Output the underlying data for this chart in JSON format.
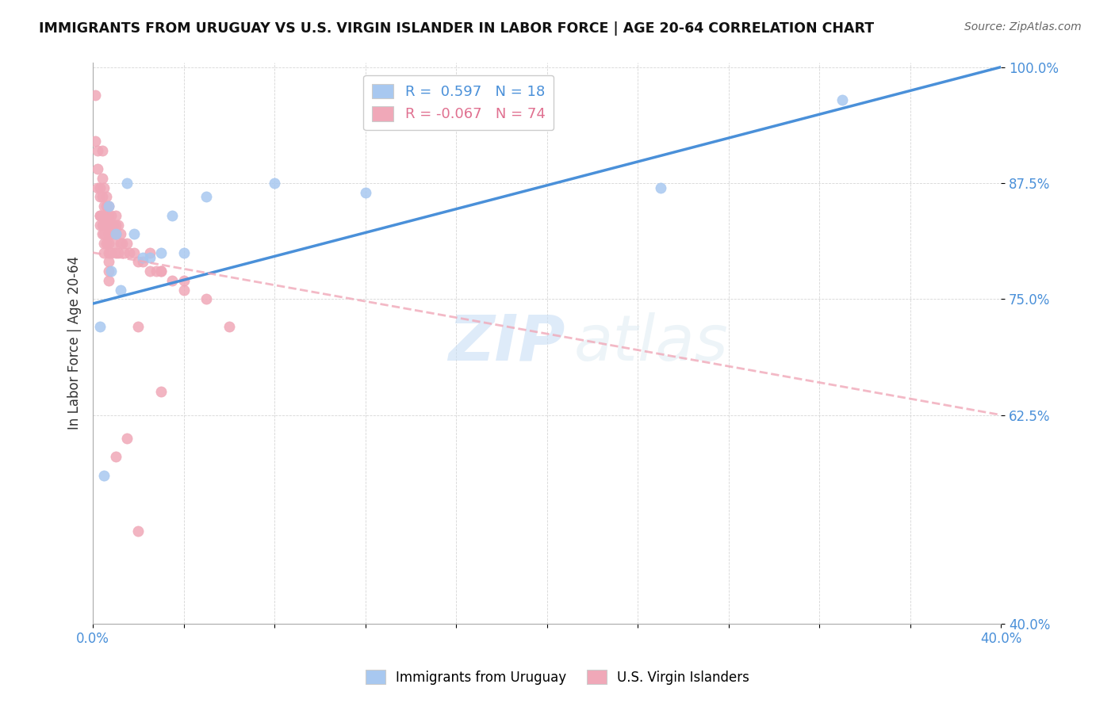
{
  "title": "IMMIGRANTS FROM URUGUAY VS U.S. VIRGIN ISLANDER IN LABOR FORCE | AGE 20-64 CORRELATION CHART",
  "source": "Source: ZipAtlas.com",
  "ylabel": "In Labor Force | Age 20-64",
  "xlim": [
    0.0,
    0.4
  ],
  "ylim": [
    0.4,
    1.005
  ],
  "xticks": [
    0.0,
    0.04,
    0.08,
    0.12,
    0.16,
    0.2,
    0.24,
    0.28,
    0.32,
    0.36,
    0.4
  ],
  "ytick_positions": [
    0.4,
    0.625,
    0.75,
    0.875,
    1.0
  ],
  "ytick_labels": [
    "40.0%",
    "62.5%",
    "75.0%",
    "87.5%",
    "100.0%"
  ],
  "blue_R": 0.597,
  "blue_N": 18,
  "pink_R": -0.067,
  "pink_N": 74,
  "blue_color": "#a8c8f0",
  "pink_color": "#f0a8b8",
  "blue_line_color": "#4a90d9",
  "pink_line_color": "#f0a8b8",
  "watermark_zip": "ZIP",
  "watermark_atlas": "atlas",
  "blue_trend_x0": 0.0,
  "blue_trend_y0": 0.745,
  "blue_trend_x1": 0.4,
  "blue_trend_y1": 1.0,
  "pink_trend_x0": 0.0,
  "pink_trend_y0": 0.8,
  "pink_trend_x1": 0.4,
  "pink_trend_y1": 0.625,
  "blue_scatter_x": [
    0.003,
    0.005,
    0.007,
    0.008,
    0.01,
    0.012,
    0.015,
    0.018,
    0.022,
    0.025,
    0.03,
    0.035,
    0.04,
    0.05,
    0.08,
    0.12,
    0.25,
    0.33
  ],
  "blue_scatter_y": [
    0.72,
    0.56,
    0.85,
    0.78,
    0.82,
    0.76,
    0.875,
    0.82,
    0.795,
    0.795,
    0.8,
    0.84,
    0.8,
    0.86,
    0.875,
    0.865,
    0.87,
    0.965
  ],
  "pink_scatter_x": [
    0.001,
    0.001,
    0.002,
    0.002,
    0.002,
    0.003,
    0.003,
    0.003,
    0.003,
    0.003,
    0.004,
    0.004,
    0.004,
    0.004,
    0.004,
    0.004,
    0.005,
    0.005,
    0.005,
    0.005,
    0.005,
    0.005,
    0.005,
    0.006,
    0.006,
    0.006,
    0.006,
    0.006,
    0.007,
    0.007,
    0.007,
    0.007,
    0.007,
    0.007,
    0.007,
    0.007,
    0.007,
    0.008,
    0.008,
    0.008,
    0.008,
    0.009,
    0.009,
    0.009,
    0.01,
    0.01,
    0.01,
    0.01,
    0.011,
    0.011,
    0.012,
    0.012,
    0.013,
    0.014,
    0.015,
    0.016,
    0.018,
    0.02,
    0.022,
    0.025,
    0.028,
    0.03,
    0.035,
    0.04,
    0.05,
    0.06,
    0.02,
    0.025,
    0.03,
    0.01,
    0.015,
    0.02,
    0.03,
    0.04
  ],
  "pink_scatter_y": [
    0.97,
    0.92,
    0.91,
    0.89,
    0.87,
    0.87,
    0.86,
    0.84,
    0.84,
    0.83,
    0.91,
    0.88,
    0.86,
    0.84,
    0.83,
    0.82,
    0.87,
    0.85,
    0.84,
    0.83,
    0.82,
    0.81,
    0.8,
    0.86,
    0.85,
    0.84,
    0.83,
    0.81,
    0.85,
    0.84,
    0.83,
    0.82,
    0.81,
    0.8,
    0.79,
    0.78,
    0.77,
    0.84,
    0.83,
    0.82,
    0.8,
    0.83,
    0.82,
    0.81,
    0.84,
    0.83,
    0.82,
    0.8,
    0.83,
    0.8,
    0.82,
    0.81,
    0.81,
    0.8,
    0.81,
    0.8,
    0.8,
    0.79,
    0.79,
    0.78,
    0.78,
    0.78,
    0.77,
    0.77,
    0.75,
    0.72,
    0.72,
    0.8,
    0.65,
    0.58,
    0.6,
    0.5,
    0.78,
    0.76
  ]
}
